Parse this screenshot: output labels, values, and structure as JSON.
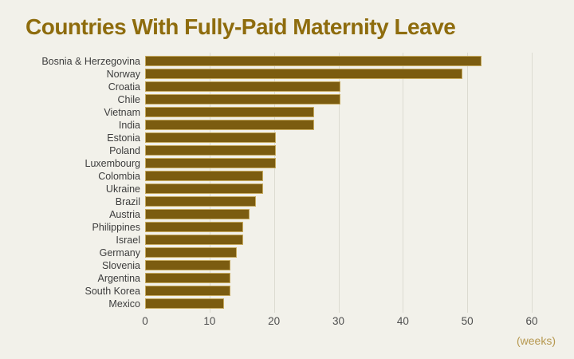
{
  "title": "Countries With Fully-Paid Maternity Leave",
  "axis_unit_label": "(weeks)",
  "colors": {
    "background": "#f2f1ea",
    "bar": "#7b5c10",
    "bar_border": "#c5a95e",
    "title": "#8e6c0d",
    "country_label": "#3d3d3d",
    "tick_label": "#4f4f4f",
    "unit_label": "#b6984f",
    "gridline": "#dcdbd1"
  },
  "chart_data": {
    "type": "bar",
    "orientation": "horizontal",
    "title": "Countries With Fully-Paid Maternity Leave",
    "xlabel": "(weeks)",
    "ylabel": "",
    "xlim": [
      0,
      60
    ],
    "xticks": [
      0,
      10,
      20,
      30,
      40,
      50,
      60
    ],
    "grid": true,
    "legend": false,
    "categories": [
      "Bosnia & Herzegovina",
      "Norway",
      "Croatia",
      "Chile",
      "Vietnam",
      "India",
      "Estonia",
      "Poland",
      "Luxembourg",
      "Colombia",
      "Ukraine",
      "Brazil",
      "Austria",
      "Philippines",
      "Israel",
      "Germany",
      "Slovenia",
      "Argentina",
      "South Korea",
      "Mexico"
    ],
    "values": [
      52,
      49,
      30,
      30,
      26,
      26,
      20,
      20,
      20,
      18,
      18,
      17,
      16,
      15,
      15,
      14,
      13,
      13,
      13,
      12
    ]
  }
}
